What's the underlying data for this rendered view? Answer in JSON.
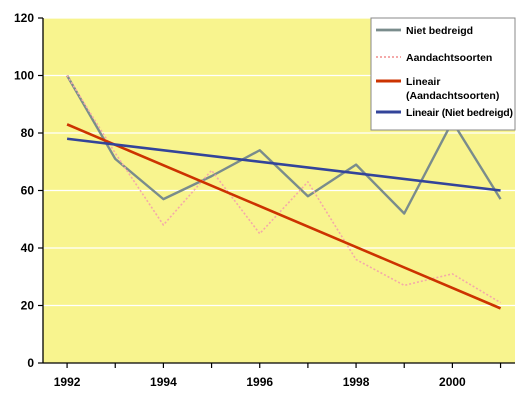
{
  "colors": {
    "plot_bg": "#f8f48e",
    "grid": "#ffffff",
    "niet_bedreigd": "#7a8c8c",
    "aandachtsoorten": "#f4a9a9",
    "lineair_aandachtsoorten": "#cc3300",
    "lineair_niet_bedreigd": "#33449a",
    "legend_bg": "#ffffff"
  },
  "chart_data": {
    "type": "line",
    "x": [
      1992,
      1993,
      1994,
      1995,
      1996,
      1997,
      1998,
      1999,
      2000,
      2001
    ],
    "xticks": [
      "1992",
      "1994",
      "1996",
      "1998",
      "2000"
    ],
    "xlim": [
      1991.5,
      2001.3
    ],
    "ylim": [
      0,
      120
    ],
    "yticks": [
      "0",
      "20",
      "40",
      "60",
      "80",
      "100",
      "120"
    ],
    "grid": "horizontal",
    "legend_position": "top-right",
    "series": [
      {
        "name": "Niet bedreigd",
        "style": "solid-thin",
        "values": [
          100,
          71,
          57,
          65,
          74,
          58,
          69,
          52,
          84,
          57
        ]
      },
      {
        "name": "Aandachtsoorten",
        "style": "dotted",
        "values": [
          100,
          73,
          48,
          67,
          45,
          63,
          36,
          27,
          31,
          21
        ]
      },
      {
        "name": "Lineair (Aandachtsoorten)",
        "style": "solid-thick",
        "values": [
          83,
          19
        ],
        "x": [
          1992,
          2001
        ]
      },
      {
        "name": "Lineair (Niet bedreigd)",
        "style": "solid-thick",
        "values": [
          78,
          60
        ],
        "x": [
          1992,
          2001
        ]
      }
    ],
    "legend": [
      {
        "label": "Niet bedreigd"
      },
      {
        "label": "Aandachtsoorten"
      },
      {
        "label": "Lineair (Aandachtsoorten)"
      },
      {
        "label": "Lineair (Niet bedreigd)"
      }
    ]
  }
}
